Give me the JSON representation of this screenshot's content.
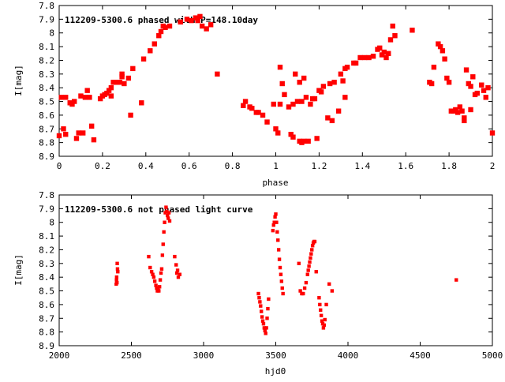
{
  "chart_data": [
    {
      "type": "scatter",
      "title": "112209-5300.6 phased with P=148.10day",
      "xlabel": "phase",
      "ylabel": "I[mag]",
      "xlim": [
        0,
        2
      ],
      "ylim": [
        8.9,
        7.8
      ],
      "y_inverted": true,
      "grid": false,
      "marker_color": "#ff0000",
      "xticks": [
        "0",
        "0.2",
        "0.4",
        "0.6",
        "0.8",
        "1",
        "1.2",
        "1.4",
        "1.6",
        "1.8",
        "2"
      ],
      "xtick_values": [
        0,
        0.2,
        0.4,
        0.6,
        0.8,
        1.0,
        1.2,
        1.4,
        1.6,
        1.8,
        2.0
      ],
      "yticks": [
        "7.8",
        "7.9",
        "8",
        "8.1",
        "8.2",
        "8.3",
        "8.4",
        "8.5",
        "8.6",
        "8.7",
        "8.8",
        "8.9"
      ],
      "ytick_values": [
        7.8,
        7.9,
        8.0,
        8.1,
        8.2,
        8.3,
        8.4,
        8.5,
        8.6,
        8.7,
        8.8,
        8.9
      ],
      "points": [
        [
          0.0,
          8.75
        ],
        [
          0.01,
          8.47
        ],
        [
          0.02,
          8.7
        ],
        [
          0.03,
          8.47
        ],
        [
          0.03,
          8.74
        ],
        [
          0.05,
          8.51
        ],
        [
          0.06,
          8.52
        ],
        [
          0.07,
          8.5
        ],
        [
          0.08,
          8.77
        ],
        [
          0.09,
          8.73
        ],
        [
          0.1,
          8.46
        ],
        [
          0.11,
          8.73
        ],
        [
          0.12,
          8.47
        ],
        [
          0.13,
          8.42
        ],
        [
          0.14,
          8.47
        ],
        [
          0.15,
          8.68
        ],
        [
          0.16,
          8.78
        ],
        [
          0.19,
          8.48
        ],
        [
          0.2,
          8.46
        ],
        [
          0.21,
          8.45
        ],
        [
          0.22,
          8.44
        ],
        [
          0.23,
          8.42
        ],
        [
          0.24,
          8.46
        ],
        [
          0.24,
          8.4
        ],
        [
          0.25,
          8.36
        ],
        [
          0.26,
          8.36
        ],
        [
          0.27,
          8.36
        ],
        [
          0.28,
          8.36
        ],
        [
          0.29,
          8.32
        ],
        [
          0.29,
          8.3
        ],
        [
          0.3,
          8.37
        ],
        [
          0.32,
          8.33
        ],
        [
          0.33,
          8.6
        ],
        [
          0.34,
          8.26
        ],
        [
          0.38,
          8.51
        ],
        [
          0.39,
          8.19
        ],
        [
          0.42,
          8.13
        ],
        [
          0.44,
          8.08
        ],
        [
          0.46,
          8.02
        ],
        [
          0.47,
          7.99
        ],
        [
          0.48,
          7.95
        ],
        [
          0.49,
          7.96
        ],
        [
          0.51,
          7.95
        ],
        [
          0.56,
          7.92
        ],
        [
          0.59,
          7.9
        ],
        [
          0.61,
          7.91
        ],
        [
          0.63,
          7.89
        ],
        [
          0.64,
          7.91
        ],
        [
          0.65,
          7.88
        ],
        [
          0.66,
          7.95
        ],
        [
          0.68,
          7.97
        ],
        [
          0.7,
          7.94
        ],
        [
          0.73,
          8.3
        ],
        [
          0.85,
          8.53
        ],
        [
          0.86,
          8.5
        ],
        [
          0.88,
          8.54
        ],
        [
          0.89,
          8.55
        ],
        [
          0.91,
          8.58
        ],
        [
          0.92,
          8.58
        ],
        [
          0.94,
          8.6
        ],
        [
          0.96,
          8.65
        ],
        [
          0.99,
          8.52
        ],
        [
          1.0,
          8.7
        ],
        [
          1.01,
          8.73
        ],
        [
          1.02,
          8.52
        ],
        [
          1.02,
          8.25
        ],
        [
          1.03,
          8.37
        ],
        [
          1.04,
          8.45
        ],
        [
          1.06,
          8.54
        ],
        [
          1.07,
          8.74
        ],
        [
          1.08,
          8.76
        ],
        [
          1.08,
          8.52
        ],
        [
          1.09,
          8.3
        ],
        [
          1.1,
          8.5
        ],
        [
          1.11,
          8.36
        ],
        [
          1.11,
          8.79
        ],
        [
          1.12,
          8.5
        ],
        [
          1.12,
          8.8
        ],
        [
          1.13,
          8.33
        ],
        [
          1.13,
          8.79
        ],
        [
          1.14,
          8.47
        ],
        [
          1.15,
          8.79
        ],
        [
          1.16,
          8.52
        ],
        [
          1.17,
          8.48
        ],
        [
          1.18,
          8.48
        ],
        [
          1.19,
          8.77
        ],
        [
          1.2,
          8.42
        ],
        [
          1.21,
          8.43
        ],
        [
          1.22,
          8.39
        ],
        [
          1.24,
          8.62
        ],
        [
          1.25,
          8.37
        ],
        [
          1.26,
          8.64
        ],
        [
          1.27,
          8.36
        ],
        [
          1.29,
          8.57
        ],
        [
          1.3,
          8.3
        ],
        [
          1.31,
          8.35
        ],
        [
          1.32,
          8.47
        ],
        [
          1.32,
          8.26
        ],
        [
          1.33,
          8.25
        ],
        [
          1.36,
          8.22
        ],
        [
          1.37,
          8.22
        ],
        [
          1.39,
          8.18
        ],
        [
          1.41,
          8.18
        ],
        [
          1.43,
          8.18
        ],
        [
          1.45,
          8.17
        ],
        [
          1.47,
          8.12
        ],
        [
          1.48,
          8.11
        ],
        [
          1.49,
          8.16
        ],
        [
          1.5,
          8.14
        ],
        [
          1.51,
          8.18
        ],
        [
          1.52,
          8.15
        ],
        [
          1.53,
          8.05
        ],
        [
          1.54,
          7.95
        ],
        [
          1.55,
          8.02
        ],
        [
          1.63,
          7.98
        ],
        [
          1.71,
          8.36
        ],
        [
          1.72,
          8.37
        ],
        [
          1.73,
          8.25
        ],
        [
          1.75,
          8.08
        ],
        [
          1.76,
          8.1
        ],
        [
          1.77,
          8.13
        ],
        [
          1.78,
          8.19
        ],
        [
          1.79,
          8.33
        ],
        [
          1.8,
          8.36
        ],
        [
          1.81,
          8.57
        ],
        [
          1.82,
          8.57
        ],
        [
          1.83,
          8.56
        ],
        [
          1.84,
          8.58
        ],
        [
          1.85,
          8.54
        ],
        [
          1.86,
          8.57
        ],
        [
          1.87,
          8.62
        ],
        [
          1.87,
          8.64
        ],
        [
          1.88,
          8.27
        ],
        [
          1.89,
          8.37
        ],
        [
          1.9,
          8.39
        ],
        [
          1.9,
          8.56
        ],
        [
          1.91,
          8.32
        ],
        [
          1.92,
          8.45
        ],
        [
          1.93,
          8.44
        ],
        [
          1.95,
          8.38
        ],
        [
          1.96,
          8.42
        ],
        [
          1.97,
          8.47
        ],
        [
          1.98,
          8.4
        ],
        [
          2.0,
          8.73
        ]
      ]
    },
    {
      "type": "scatter",
      "title": "112209-5300.6 not phased light curve",
      "xlabel": "hjd0",
      "ylabel": "I[mag]",
      "xlim": [
        2000,
        5000
      ],
      "ylim": [
        8.9,
        7.8
      ],
      "y_inverted": true,
      "grid": false,
      "marker_color": "#ff0000",
      "xticks": [
        "2000",
        "2500",
        "3000",
        "3500",
        "4000",
        "4500",
        "5000"
      ],
      "xtick_values": [
        2000,
        2500,
        3000,
        3500,
        4000,
        4500,
        5000
      ],
      "yticks": [
        "7.8",
        "7.9",
        "8",
        "8.1",
        "8.2",
        "8.3",
        "8.4",
        "8.5",
        "8.6",
        "8.7",
        "8.8",
        "8.9"
      ],
      "ytick_values": [
        7.8,
        7.9,
        8.0,
        8.1,
        8.2,
        8.3,
        8.4,
        8.5,
        8.6,
        8.7,
        8.8,
        8.9
      ],
      "points": [
        [
          2395,
          8.45
        ],
        [
          2397,
          8.42
        ],
        [
          2398,
          8.4
        ],
        [
          2400,
          8.44
        ],
        [
          2402,
          8.3
        ],
        [
          2404,
          8.34
        ],
        [
          2406,
          8.36
        ],
        [
          2620,
          8.25
        ],
        [
          2630,
          8.33
        ],
        [
          2640,
          8.36
        ],
        [
          2648,
          8.38
        ],
        [
          2655,
          8.4
        ],
        [
          2662,
          8.43
        ],
        [
          2670,
          8.46
        ],
        [
          2675,
          8.48
        ],
        [
          2680,
          8.5
        ],
        [
          2685,
          8.48
        ],
        [
          2690,
          8.5
        ],
        [
          2695,
          8.47
        ],
        [
          2700,
          8.42
        ],
        [
          2705,
          8.37
        ],
        [
          2710,
          8.34
        ],
        [
          2715,
          8.24
        ],
        [
          2720,
          8.16
        ],
        [
          2725,
          8.07
        ],
        [
          2730,
          8.0
        ],
        [
          2735,
          7.93
        ],
        [
          2740,
          7.89
        ],
        [
          2745,
          7.92
        ],
        [
          2750,
          7.95
        ],
        [
          2755,
          7.97
        ],
        [
          2760,
          7.93
        ],
        [
          2765,
          7.99
        ],
        [
          2800,
          8.25
        ],
        [
          2810,
          8.31
        ],
        [
          2815,
          8.37
        ],
        [
          2820,
          8.35
        ],
        [
          2825,
          8.4
        ],
        [
          2835,
          8.38
        ],
        [
          3380,
          8.52
        ],
        [
          3385,
          8.55
        ],
        [
          3390,
          8.58
        ],
        [
          3395,
          8.61
        ],
        [
          3400,
          8.65
        ],
        [
          3405,
          8.69
        ],
        [
          3410,
          8.72
        ],
        [
          3415,
          8.74
        ],
        [
          3420,
          8.77
        ],
        [
          3425,
          8.79
        ],
        [
          3430,
          8.81
        ],
        [
          3435,
          8.77
        ],
        [
          3440,
          8.7
        ],
        [
          3445,
          8.63
        ],
        [
          3450,
          8.56
        ],
        [
          3480,
          8.06
        ],
        [
          3485,
          8.02
        ],
        [
          3490,
          8.0
        ],
        [
          3495,
          7.96
        ],
        [
          3500,
          7.94
        ],
        [
          3505,
          8.0
        ],
        [
          3510,
          8.07
        ],
        [
          3515,
          8.13
        ],
        [
          3520,
          8.2
        ],
        [
          3525,
          8.27
        ],
        [
          3530,
          8.33
        ],
        [
          3535,
          8.38
        ],
        [
          3540,
          8.43
        ],
        [
          3545,
          8.48
        ],
        [
          3550,
          8.52
        ],
        [
          3660,
          8.3
        ],
        [
          3670,
          8.5
        ],
        [
          3680,
          8.52
        ],
        [
          3690,
          8.52
        ],
        [
          3700,
          8.48
        ],
        [
          3710,
          8.44
        ],
        [
          3720,
          8.38
        ],
        [
          3725,
          8.35
        ],
        [
          3730,
          8.32
        ],
        [
          3735,
          8.29
        ],
        [
          3740,
          8.26
        ],
        [
          3745,
          8.23
        ],
        [
          3750,
          8.2
        ],
        [
          3755,
          8.17
        ],
        [
          3760,
          8.15
        ],
        [
          3765,
          8.14
        ],
        [
          3770,
          8.14
        ],
        [
          3780,
          8.36
        ],
        [
          3800,
          8.55
        ],
        [
          3805,
          8.6
        ],
        [
          3810,
          8.64
        ],
        [
          3815,
          8.68
        ],
        [
          3820,
          8.72
        ],
        [
          3825,
          8.74
        ],
        [
          3830,
          8.77
        ],
        [
          3835,
          8.75
        ],
        [
          3840,
          8.71
        ],
        [
          3850,
          8.6
        ],
        [
          3870,
          8.45
        ],
        [
          3890,
          8.5
        ],
        [
          4750,
          8.42
        ]
      ]
    }
  ]
}
